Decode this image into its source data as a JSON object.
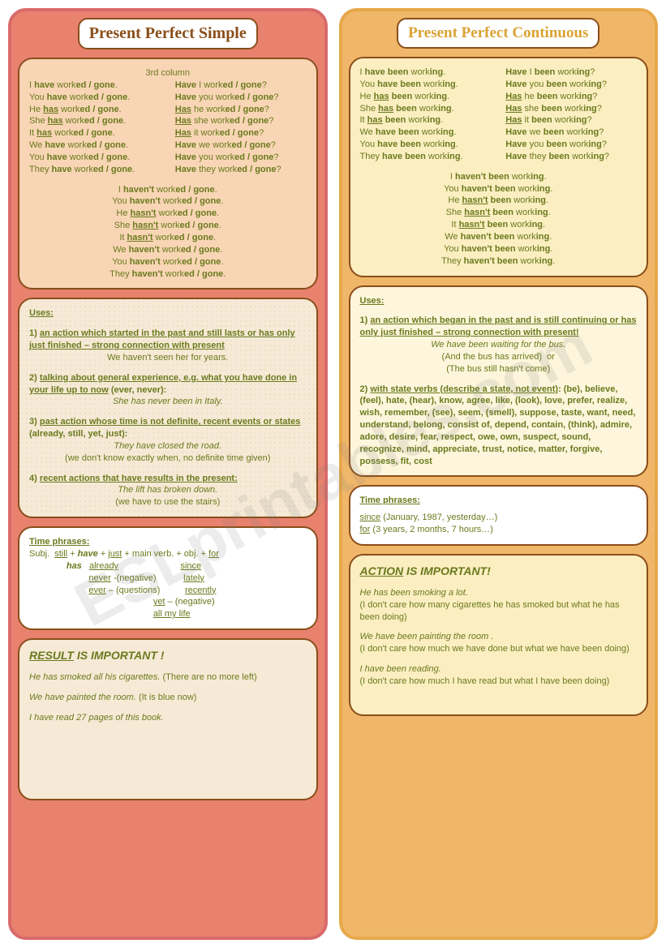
{
  "watermark": "ESLprintables.com",
  "left": {
    "title": "Present Perfect Simple",
    "conj": {
      "header": "3rd column",
      "affirm": [
        "I <b>have</b> work<b>ed / gone</b>.",
        "You <b>have</b> work<b>ed / gone</b>.",
        "He <b><u>has</u></b> work<b>ed / gone</b>.",
        "She <b><u>has</u></b> work<b>ed / gone</b>.",
        "It <b><u>has</u></b> work<b>ed / gone</b>.",
        "We <b>have</b> work<b>ed / gone</b>.",
        "You <b>have</b> work<b>ed / gone</b>.",
        "They <b>have</b> work<b>ed / gone</b>."
      ],
      "quest": [
        "<b>Have</b> I work<b>ed / gone</b>?",
        "<b>Have</b> you work<b>ed / gone</b>?",
        "<b><u>Has</u></b> he work<b>ed / gone</b>?",
        "<b><u>Has</u></b> she work<b>ed / gone</b>?",
        "<b><u>Has</u></b> it work<b>ed / gone</b>?",
        "<b>Have</b> we work<b>ed / gone</b>?",
        "<b>Have</b> you work<b>ed / gone</b>?",
        "<b>Have</b> they work<b>ed / gone</b>?"
      ],
      "neg": [
        "I <b>haven't</b> work<b>ed / gone</b>.",
        "You <b>haven't</b> work<b>ed / gone</b>.",
        "He <b><u>hasn't</u></b> work<b>ed / gone</b>.",
        "She <b><u>hasn't</u></b> work<b>ed / gone</b>.",
        "It <b><u>hasn't</u></b> work<b>ed / gone</b>.",
        "We <b>haven't</b> work<b>ed / gone</b>.",
        "You <b>haven't</b> work<b>ed / gone</b>.",
        "They <b>haven't</b> work<b>ed / gone</b>."
      ]
    },
    "uses": {
      "heading": "Uses:",
      "items": [
        {
          "h": "1) <u>an action which started in the past and still lasts or has only just finished – strong connection with present</u>",
          "ex": "We haven't seen her for years."
        },
        {
          "h": "2) <u>talking about general experience, e.g. what you have done in your life up to now</u> (<b>ever, never</b>):",
          "ex": "<em>She has never been in Italy.</em>"
        },
        {
          "h": "3) <u>past action whose time is not definite, recent events or states</u> (<b>already, still, yet, just</b>):",
          "ex": "<em>They have closed the road.</em><br>(we don't know exactly when, no definite time given)"
        },
        {
          "h": "4) <u>recent actions that have results in the present:</u>",
          "ex": "<em>The lift has broken down.</em><br>(we have to use the stairs)"
        }
      ]
    },
    "time": {
      "heading": "Time phrases:",
      "body": "Subj. &nbsp;<u>still</u> + <b><em>have</em></b> + <u>just</u> + main verb. + obj. + <u>for</u><br>&nbsp;&nbsp;&nbsp;&nbsp;&nbsp;&nbsp;&nbsp;&nbsp;&nbsp;&nbsp;&nbsp;&nbsp;&nbsp;&nbsp;&nbsp;<b><em>has</em></b>&nbsp;&nbsp;&nbsp;<u>already</u>&nbsp;&nbsp;&nbsp;&nbsp;&nbsp;&nbsp;&nbsp;&nbsp;&nbsp;&nbsp;&nbsp;&nbsp;&nbsp;&nbsp;&nbsp;&nbsp;&nbsp;&nbsp;&nbsp;&nbsp;&nbsp;&nbsp;&nbsp;&nbsp;&nbsp;<u>since</u><br>&nbsp;&nbsp;&nbsp;&nbsp;&nbsp;&nbsp;&nbsp;&nbsp;&nbsp;&nbsp;&nbsp;&nbsp;&nbsp;&nbsp;&nbsp;&nbsp;&nbsp;&nbsp;&nbsp;&nbsp;&nbsp;&nbsp;&nbsp;&nbsp;<u>never</u> -(negative)&nbsp;&nbsp;&nbsp;&nbsp;&nbsp;&nbsp;&nbsp;&nbsp;&nbsp;&nbsp;&nbsp;<u>lately</u><br>&nbsp;&nbsp;&nbsp;&nbsp;&nbsp;&nbsp;&nbsp;&nbsp;&nbsp;&nbsp;&nbsp;&nbsp;&nbsp;&nbsp;&nbsp;&nbsp;&nbsp;&nbsp;&nbsp;&nbsp;&nbsp;&nbsp;&nbsp;&nbsp;<u>ever</u> – (questions)&nbsp;&nbsp;&nbsp;&nbsp;&nbsp;&nbsp;&nbsp;&nbsp;&nbsp;&nbsp;<u>recently</u><br>&nbsp;&nbsp;&nbsp;&nbsp;&nbsp;&nbsp;&nbsp;&nbsp;&nbsp;&nbsp;&nbsp;&nbsp;&nbsp;&nbsp;&nbsp;&nbsp;&nbsp;&nbsp;&nbsp;&nbsp;&nbsp;&nbsp;&nbsp;&nbsp;&nbsp;&nbsp;&nbsp;&nbsp;&nbsp;&nbsp;&nbsp;&nbsp;&nbsp;&nbsp;&nbsp;&nbsp;&nbsp;&nbsp;&nbsp;&nbsp;&nbsp;&nbsp;&nbsp;&nbsp;&nbsp;&nbsp;&nbsp;&nbsp;&nbsp;&nbsp;<u>yet</u> – (negative)<br>&nbsp;&nbsp;&nbsp;&nbsp;&nbsp;&nbsp;&nbsp;&nbsp;&nbsp;&nbsp;&nbsp;&nbsp;&nbsp;&nbsp;&nbsp;&nbsp;&nbsp;&nbsp;&nbsp;&nbsp;&nbsp;&nbsp;&nbsp;&nbsp;&nbsp;&nbsp;&nbsp;&nbsp;&nbsp;&nbsp;&nbsp;&nbsp;&nbsp;&nbsp;&nbsp;&nbsp;&nbsp;&nbsp;&nbsp;&nbsp;&nbsp;&nbsp;&nbsp;&nbsp;&nbsp;&nbsp;&nbsp;&nbsp;&nbsp;&nbsp;<u>all my life</u>"
    },
    "summary": {
      "title": "<u><em>RESULT</em></u> IS IMPORTANT !",
      "lines": [
        "<em>He has smoked all his cigarettes.</em> (There are no more left)",
        "<em>We have painted the room.</em> (It is blue now)",
        "<em>I have read 27 pages of this book.</em>"
      ]
    }
  },
  "right": {
    "title": "Present Perfect Continuous",
    "conj": {
      "affirm": [
        "I <b>have been</b> work<b>ing</b>.",
        "You <b>have been</b> work<b>ing</b>.",
        "He <b><u>has</u> been</b> work<b>ing</b>.",
        "She <b><u>has</u> been</b> work<b>ing</b>.",
        "It <b><u>has</u> been</b> work<b>ing</b>.",
        "We <b>have been</b> work<b>ing</b>.",
        "You <b>have been</b> work<b>ing</b>.",
        "They <b>have been</b> work<b>ing</b>."
      ],
      "quest": [
        "<b>Have</b> I <b>been</b> work<b>ing</b>?",
        "<b>Have</b> you <b>been</b> work<b>ing</b>?",
        "<b><u>Has</u></b> he <b>been</b> work<b>ing</b>?",
        "<b><u>Has</u></b> she <b>been</b> work<b>ing</b>?",
        "<b><u>Has</u></b> it <b>been</b> work<b>ing</b>?",
        "<b>Have</b> we <b>been</b> work<b>ing</b>?",
        "<b>Have</b> you <b>been</b> work<b>ing</b>?",
        "<b>Have</b> they <b>been</b> work<b>ing</b>?"
      ],
      "neg": [
        "I <b>haven't been</b> work<b>ing</b>.",
        "You <b>haven't been</b> work<b>ing</b>.",
        "He <b><u>hasn't</u> been</b> work<b>ing</b>.",
        "She <b><u>hasn't</u> been</b> work<b>ing</b>.",
        "It <b><u>hasn't</u> been</b> work<b>ing</b>.",
        "We <b>haven't been</b> work<b>ing</b>.",
        "You <b>haven't been</b> work<b>ing</b>.",
        "They <b>haven't been</b> work<b>ing</b>."
      ]
    },
    "uses": {
      "heading": "Uses:",
      "items": [
        {
          "h": "1) <u>an action which began in the past and is still continuing or has only just finished – strong connection with present!</u>",
          "ex": "<em>We have been waiting for the bus.</em><br>(And the bus has arrived) &nbsp;or<br>(The bus still hasn't come)"
        },
        {
          "h": "2) <u>with state verbs (describe a state, not event)</u>: (be), believe, (feel), hate, (hear), know, agree, like, (look), love, prefer, realize, wish, remember, (see), seem, (smell), suppose, taste, want, need, understand, belong, consist of, depend, contain, (think), admire, adore, desire, fear, respect, owe, own, suspect, sound, recognize, mind, appreciate, trust, notice, matter, forgive, possess, fit, cost",
          "ex": ""
        }
      ]
    },
    "time": {
      "heading": "Time phrases:",
      "body": "<u>since</u> (January, 1987, yesterday…)<br><u>for</u> (3 years, 2 months, 7 hours…)"
    },
    "summary": {
      "title": "<u><em>ACTION</em></u> IS IMPORTANT!",
      "lines": [
        "<em>He has been smoking a lot.</em><br>(I don't care how many cigarettes he has smoked but what he has been doing)",
        "<em>We have been painting the room .</em><br>(I don't care how much we have done but what we have been doing)",
        "<em>I have been reading.</em><br>(I don't care how much I have read but what I have been doing)"
      ]
    }
  }
}
